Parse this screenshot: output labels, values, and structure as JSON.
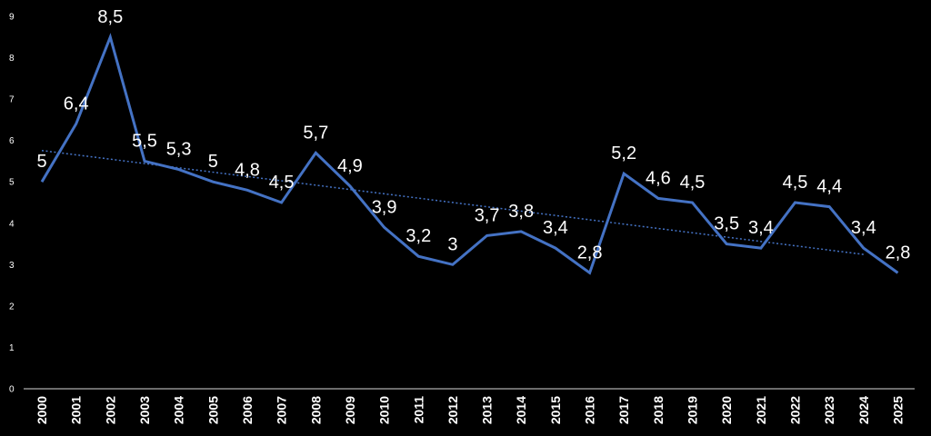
{
  "chart_data": {
    "type": "line",
    "title": "",
    "xlabel": "",
    "ylabel": "",
    "ylim": [
      0,
      9
    ],
    "yticks": [
      "0",
      "1",
      "2",
      "3",
      "4",
      "5",
      "6",
      "7",
      "8",
      "9"
    ],
    "grid": false,
    "legend": "none",
    "categories": [
      "2000",
      "2001",
      "2002",
      "2003",
      "2004",
      "2005",
      "2006",
      "2007",
      "2008",
      "2009",
      "2010",
      "2011",
      "2012",
      "2013",
      "2014",
      "2015",
      "2016",
      "2017",
      "2018",
      "2019",
      "2020",
      "2021",
      "2022",
      "2023",
      "2024",
      "2025"
    ],
    "series": [
      {
        "values": [
          5,
          6.4,
          8.5,
          5.5,
          5.3,
          5,
          4.8,
          4.5,
          5.7,
          4.9,
          3.9,
          3.2,
          3,
          3.7,
          3.8,
          3.4,
          2.8,
          5.2,
          4.6,
          4.5,
          3.5,
          3.4,
          4.5,
          4.4,
          3.4,
          2.8
        ],
        "data_labels": [
          "5",
          "6,4",
          "8,5",
          "5,5",
          "5,3",
          "5",
          "4,8",
          "4,5",
          "5,7",
          "4,9",
          "3,9",
          "3,2",
          "3",
          "3,7",
          "3,8",
          "3,4",
          "2,8",
          "5,2",
          "4,6",
          "4,5",
          "3,5",
          "3,4",
          "4,5",
          "4,4",
          "3,4",
          "2,8"
        ],
        "color": "#4472c4"
      }
    ],
    "trendline": {
      "type": "linear",
      "style": "dotted",
      "color": "#4472c4"
    }
  }
}
